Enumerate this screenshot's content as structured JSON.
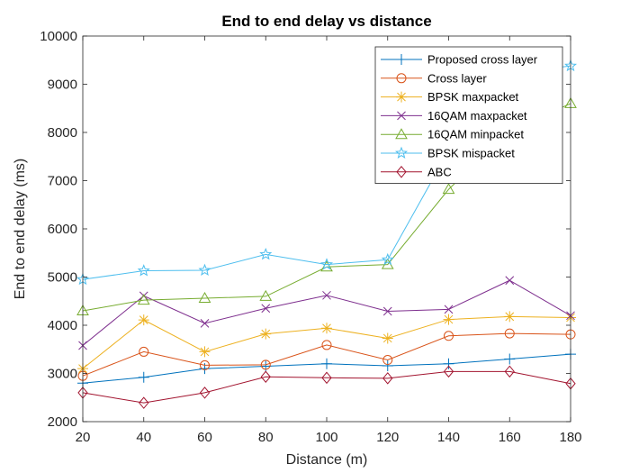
{
  "chart_data": {
    "type": "line",
    "title": "End to end delay vs distance",
    "xlabel": "Distance (m)",
    "ylabel": "End to end delay (ms)",
    "xlim": [
      20,
      180
    ],
    "ylim": [
      2000,
      10000
    ],
    "xticks": [
      20,
      40,
      60,
      80,
      100,
      120,
      140,
      160,
      180
    ],
    "yticks": [
      2000,
      3000,
      4000,
      5000,
      6000,
      7000,
      8000,
      9000,
      10000
    ],
    "x": [
      20,
      40,
      60,
      80,
      100,
      120,
      140,
      160,
      180
    ],
    "grid": false,
    "legend_position": "top-right",
    "series": [
      {
        "name": "Proposed cross layer",
        "marker": "plus",
        "color": "#0072bd",
        "values": [
          2800,
          2920,
          3100,
          3150,
          3200,
          3160,
          3200,
          3300,
          3400
        ]
      },
      {
        "name": "Cross layer",
        "marker": "circle",
        "color": "#d95319",
        "values": [
          2950,
          3450,
          3170,
          3180,
          3590,
          3280,
          3780,
          3830,
          3810
        ]
      },
      {
        "name": "BPSK maxpacket",
        "marker": "asterisk",
        "color": "#edb120",
        "values": [
          3100,
          4110,
          3450,
          3820,
          3940,
          3730,
          4120,
          4180,
          4160
        ]
      },
      {
        "name": "16QAM maxpacket",
        "marker": "cross",
        "color": "#7e2f8e",
        "values": [
          3580,
          4610,
          4040,
          4350,
          4620,
          4290,
          4330,
          4930,
          4200
        ]
      },
      {
        "name": "16QAM minpacket",
        "marker": "triangle",
        "color": "#77ac30",
        "values": [
          4300,
          4520,
          4560,
          4600,
          5210,
          5260,
          6820,
          8030,
          8600
        ]
      },
      {
        "name": "BPSK mispacket",
        "marker": "star",
        "color": "#4dbeee",
        "values": [
          4950,
          5130,
          5140,
          5470,
          5260,
          5360,
          7620,
          9220,
          9380
        ]
      },
      {
        "name": "ABC",
        "marker": "diamond",
        "color": "#a2142f",
        "values": [
          2600,
          2390,
          2600,
          2930,
          2910,
          2900,
          3040,
          3040,
          2790
        ]
      }
    ]
  }
}
